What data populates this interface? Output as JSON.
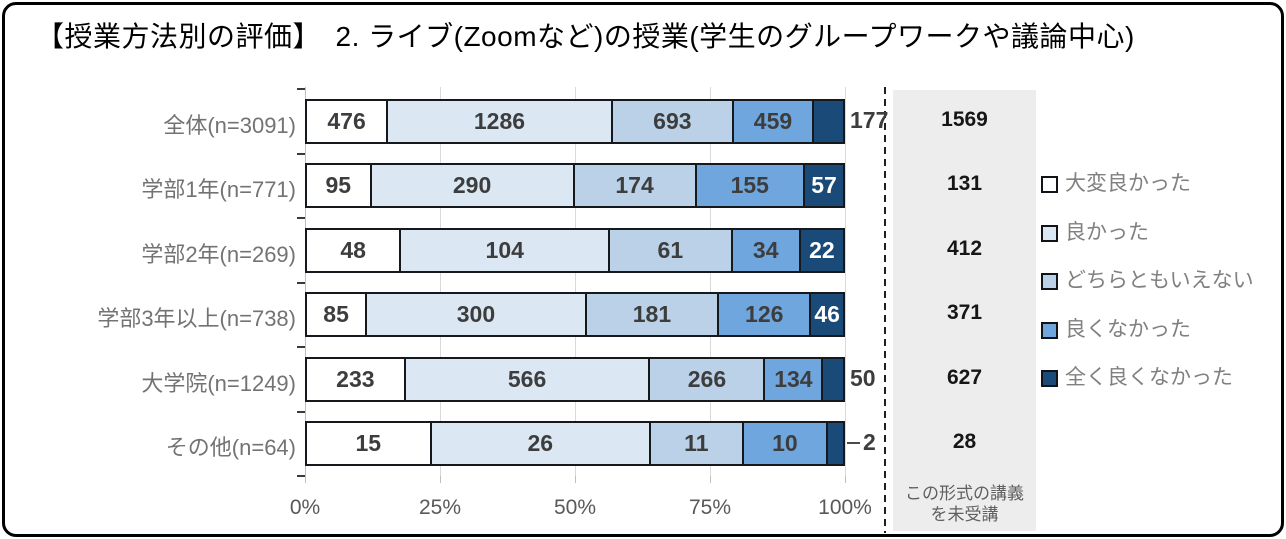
{
  "title": "【授業方法別の評価】　2. ライブ(Zoomなど)の授業(学生のグループワークや議論中心)",
  "chart_data": {
    "type": "bar",
    "orientation": "horizontal",
    "stacked": "100%",
    "categories": [
      "全体(n=3091)",
      "学部1年(n=771)",
      "学部2年(n=269)",
      "学部3年以上(n=738)",
      "大学院(n=1249)",
      "その他(n=64)"
    ],
    "series": [
      {
        "name": "大変良かった",
        "color": "#ffffff",
        "values": [
          476,
          95,
          48,
          85,
          233,
          15
        ]
      },
      {
        "name": "良かった",
        "color": "#dbe8f4",
        "values": [
          1286,
          290,
          104,
          300,
          566,
          26
        ]
      },
      {
        "name": "どちらともいえない",
        "color": "#bad1e8",
        "values": [
          693,
          174,
          61,
          181,
          266,
          11
        ]
      },
      {
        "name": "良くなかった",
        "color": "#6fa6de",
        "values": [
          459,
          155,
          34,
          126,
          134,
          10
        ]
      },
      {
        "name": "全く良くなかった",
        "color": "#1a4a78",
        "values": [
          177,
          57,
          22,
          46,
          50,
          2
        ]
      }
    ],
    "x_ticks": [
      "0%",
      "25%",
      "50%",
      "75%",
      "100%"
    ],
    "xlim": [
      0,
      100
    ],
    "grid": true,
    "legend_position": "right",
    "not_attended_column": {
      "values": [
        1569,
        131,
        412,
        371,
        627,
        28
      ],
      "note_line1": "この形式の講義",
      "note_line2": "を未受講"
    }
  },
  "colors": {
    "segment_border": "#15191e",
    "label_dark": "#3d3d3d",
    "label_light": "#ffffff",
    "axis_text": "#595959",
    "category_text": "#737373",
    "legend_text": "#808080",
    "gray_box": "#ededed",
    "gridline": "#d9d9d9",
    "dashed_line": "#1f1f1f"
  }
}
